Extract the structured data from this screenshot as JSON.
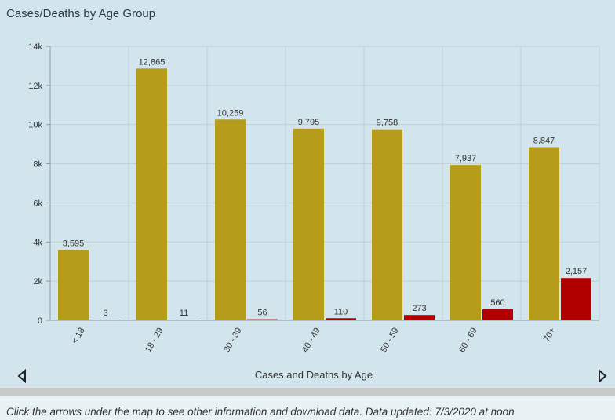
{
  "title": "Cases/Deaths by Age Group",
  "chart_data": {
    "type": "bar",
    "title": "Cases/Deaths by Age Group",
    "xlabel": "Cases and Deaths by Age",
    "ylabel": "",
    "categories": [
      "< 18",
      "18 - 29",
      "30 - 39",
      "40 - 49",
      "50 - 59",
      "60 - 69",
      "70+"
    ],
    "series": [
      {
        "values": [
          3595,
          12865,
          10259,
          9795,
          9758,
          7937,
          8847
        ],
        "labels": [
          "3,595",
          "12,865",
          "10,259",
          "9,795",
          "9,758",
          "7,937",
          "8,847"
        ],
        "color": "#b59d1b"
      },
      {
        "values": [
          3,
          11,
          56,
          110,
          273,
          560,
          2157
        ],
        "labels": [
          "3",
          "11",
          "56",
          "110",
          "273",
          "560",
          "2,157"
        ],
        "color": "#b00000"
      }
    ],
    "ylim": [
      0,
      14000
    ],
    "yticks": [
      0,
      2000,
      4000,
      6000,
      8000,
      10000,
      12000,
      14000
    ],
    "ytick_labels": [
      "0",
      "2k",
      "4k",
      "6k",
      "8k",
      "10k",
      "12k",
      "14k"
    ],
    "grid": true,
    "legend": "none"
  },
  "nav": {
    "left_icon": "triangle-left-icon",
    "right_icon": "triangle-right-icon"
  },
  "footer": "Click the arrows under the map to see other information and download data. Data updated: 7/3/2020 at noon"
}
